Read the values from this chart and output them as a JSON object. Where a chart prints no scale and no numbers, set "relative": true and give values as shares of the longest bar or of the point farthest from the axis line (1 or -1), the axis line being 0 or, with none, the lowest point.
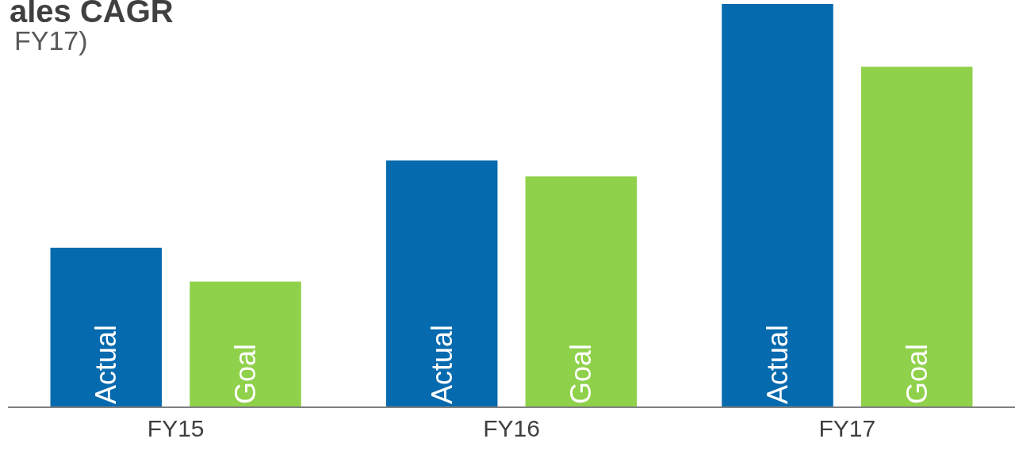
{
  "chart_data": {
    "type": "bar",
    "title": "ales CAGR",
    "subtitle": "FY17)",
    "categories": [
      "FY15",
      "FY16",
      "FY17"
    ],
    "relative": true,
    "legend": false,
    "series": [
      {
        "name": "Actual",
        "color": "#066aae",
        "values": [
          0.394,
          0.611,
          1
        ]
      },
      {
        "name": "Goal",
        "color": "#8fd14a",
        "values": [
          0.31,
          0.572,
          0.844
        ]
      }
    ]
  }
}
